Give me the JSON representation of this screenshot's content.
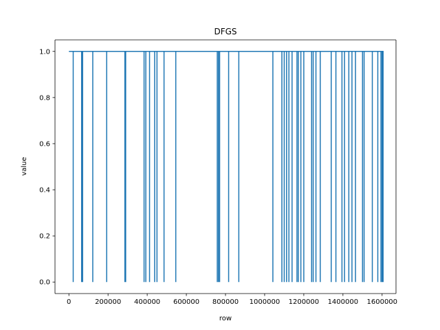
{
  "chart_data": {
    "type": "line",
    "title": "DFGS",
    "xlabel": "row",
    "ylabel": "value",
    "xlim": [
      -71000,
      1671000
    ],
    "ylim": [
      -0.05,
      1.05
    ],
    "xticks": [
      0,
      200000,
      400000,
      600000,
      800000,
      1000000,
      1200000,
      1400000,
      1600000
    ],
    "xtick_labels": [
      "0",
      "200000",
      "400000",
      "600000",
      "800000",
      "1000000",
      "1200000",
      "1400000",
      "1600000"
    ],
    "yticks": [
      0.0,
      0.2,
      0.4,
      0.6,
      0.8,
      1.0
    ],
    "ytick_labels": [
      "0.0",
      "0.2",
      "0.4",
      "0.6",
      "0.8",
      "1.0"
    ],
    "grid": false,
    "line_color": "#1f77b4",
    "series": [
      {
        "x_range": [
          0,
          1600000
        ],
        "baseline_value": 1.0,
        "drops_to": 0.0,
        "drop_x": [
          22000,
          65000,
          70000,
          122000,
          193000,
          286000,
          290000,
          384000,
          393000,
          412000,
          438000,
          450000,
          486000,
          546000,
          758000,
          764000,
          770000,
          816000,
          868000,
          1042000,
          1088000,
          1100000,
          1112000,
          1124000,
          1140000,
          1165000,
          1172000,
          1185000,
          1200000,
          1240000,
          1248000,
          1262000,
          1284000,
          1340000,
          1364000,
          1395000,
          1408000,
          1430000,
          1446000,
          1464000,
          1500000,
          1508000,
          1550000,
          1578000,
          1594000,
          1605000
        ]
      }
    ]
  }
}
